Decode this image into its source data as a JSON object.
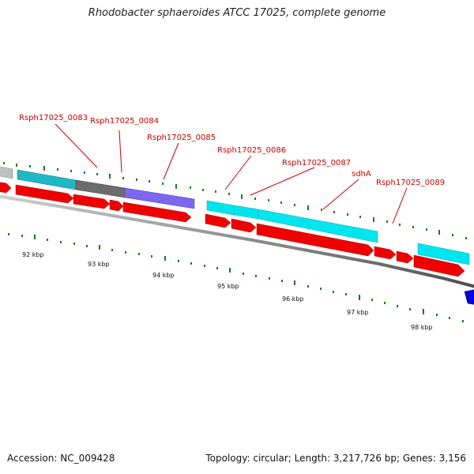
{
  "title": "Rhodobacter sphaeroides ATCC 17025, complete genome",
  "footer": {
    "accession": "Accession: NC_009428",
    "summary": "Topology: circular; Length: 3,217,726 bp; Genes: 3,156"
  },
  "colors": {
    "cds_red": "#ee0000",
    "cyan": "#00e5ee",
    "teal": "#1fb8c4",
    "slate_gray": "#6c6c6c",
    "purple": "#7b68ee",
    "blue": "#0000dd",
    "tick_green": "#1a7a1a",
    "label_red": "#cc0000"
  },
  "gene_labels": [
    "Rsph17025_0083",
    "Rsph17025_0084",
    "Rsph17025_0085",
    "Rsph17025_0086",
    "Rsph17025_0087",
    "sdhA",
    "Rsph17025_0089"
  ],
  "scale_labels": [
    "92 kbp",
    "93 kbp",
    "94 kbp",
    "95 kbp",
    "96 kbp",
    "97 kbp",
    "98 kbp"
  ]
}
